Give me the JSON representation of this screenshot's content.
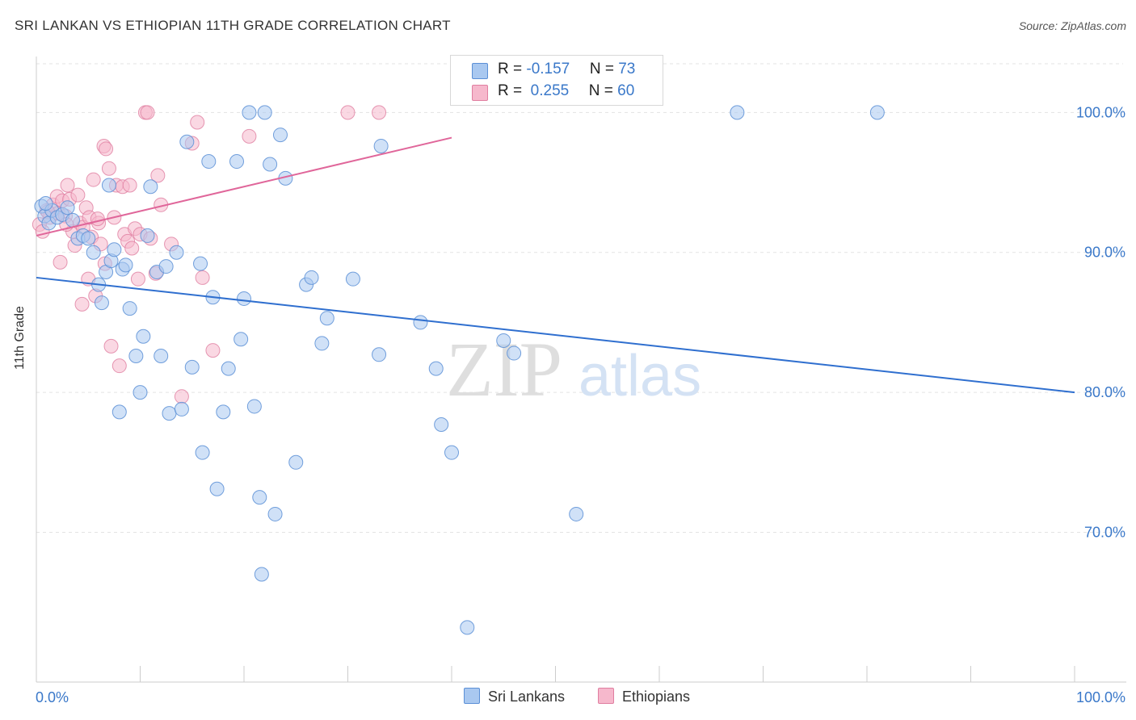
{
  "title": "SRI LANKAN VS ETHIOPIAN 11TH GRADE CORRELATION CHART",
  "source": "Source: ZipAtlas.com",
  "watermark": {
    "zip": "ZIP",
    "atlas": "atlas"
  },
  "colors": {
    "blue_fill": "#a9c8f0",
    "blue_stroke": "#5b8fd6",
    "blue_line": "#2f6fcf",
    "pink_fill": "#f6b8cc",
    "pink_stroke": "#e07ea0",
    "pink_line": "#e0669a",
    "axis_text": "#3a78c9",
    "grid": "#e3e3e3"
  },
  "legend": {
    "rows": [
      {
        "r_label": "R = ",
        "r_value": "-0.157",
        "n_label": "N = ",
        "n_value": "73"
      },
      {
        "r_label": "R = ",
        "r_value": " 0.255",
        "n_label": "N = ",
        "n_value": "60"
      }
    ]
  },
  "bottom_legend": {
    "sri_lankans": "Sri Lankans",
    "ethiopians": "Ethiopians"
  },
  "chart_data": {
    "type": "scatter",
    "title": "SRI LANKAN VS ETHIOPIAN 11TH GRADE CORRELATION CHART",
    "xlabel": "",
    "ylabel": "11th Grade",
    "xlim": [
      0,
      100
    ],
    "ylim": [
      59.3,
      104
    ],
    "x_tick_labels": [
      {
        "value": 0,
        "label": "0.0%"
      },
      {
        "value": 100,
        "label": "100.0%"
      }
    ],
    "y_tick_labels": [
      {
        "value": 100,
        "label": "100.0%"
      },
      {
        "value": 90,
        "label": "90.0%"
      },
      {
        "value": 80,
        "label": "80.0%"
      },
      {
        "value": 70,
        "label": "70.0%"
      }
    ],
    "grid": true,
    "legend_position": "top-center",
    "series": [
      {
        "name": "Sri Lankans",
        "r": -0.157,
        "n": 73,
        "trend": {
          "x": [
            0,
            100
          ],
          "y": [
            88.2,
            80.0
          ]
        },
        "points": [
          [
            0.5,
            93.3
          ],
          [
            0.8,
            92.6
          ],
          [
            1.2,
            92.1
          ],
          [
            1.5,
            93.0
          ],
          [
            2.0,
            92.5
          ],
          [
            2.5,
            92.7
          ],
          [
            3.0,
            93.2
          ],
          [
            3.5,
            92.3
          ],
          [
            4.0,
            91.0
          ],
          [
            4.5,
            91.2
          ],
          [
            5.0,
            91.0
          ],
          [
            5.5,
            90.0
          ],
          [
            6.0,
            87.7
          ],
          [
            6.3,
            86.4
          ],
          [
            6.7,
            88.6
          ],
          [
            7.0,
            94.8
          ],
          [
            7.2,
            89.4
          ],
          [
            7.5,
            90.2
          ],
          [
            8.0,
            78.6
          ],
          [
            8.3,
            88.8
          ],
          [
            8.6,
            89.1
          ],
          [
            9.0,
            86.0
          ],
          [
            9.6,
            82.6
          ],
          [
            10.0,
            80.0
          ],
          [
            10.3,
            84.0
          ],
          [
            10.7,
            91.2
          ],
          [
            11.0,
            94.7
          ],
          [
            11.6,
            88.6
          ],
          [
            12.0,
            82.6
          ],
          [
            12.5,
            89.0
          ],
          [
            12.8,
            78.5
          ],
          [
            13.5,
            90.0
          ],
          [
            14.0,
            78.8
          ],
          [
            14.5,
            97.9
          ],
          [
            15.0,
            81.8
          ],
          [
            15.8,
            89.2
          ],
          [
            16.0,
            75.7
          ],
          [
            16.6,
            96.5
          ],
          [
            17.0,
            86.8
          ],
          [
            17.4,
            73.1
          ],
          [
            18.0,
            78.6
          ],
          [
            18.5,
            81.7
          ],
          [
            19.3,
            96.5
          ],
          [
            19.7,
            83.8
          ],
          [
            20.0,
            86.7
          ],
          [
            20.5,
            100.0
          ],
          [
            21.0,
            79.0
          ],
          [
            21.5,
            72.5
          ],
          [
            21.7,
            67.0
          ],
          [
            22.0,
            100.0
          ],
          [
            22.5,
            96.3
          ],
          [
            23.0,
            71.3
          ],
          [
            23.5,
            98.4
          ],
          [
            24.0,
            95.3
          ],
          [
            25.0,
            75.0
          ],
          [
            26.0,
            87.7
          ],
          [
            26.5,
            88.2
          ],
          [
            27.5,
            83.5
          ],
          [
            28.0,
            85.3
          ],
          [
            30.5,
            88.1
          ],
          [
            33.0,
            82.7
          ],
          [
            33.2,
            97.6
          ],
          [
            37.0,
            85.0
          ],
          [
            38.5,
            81.7
          ],
          [
            39.0,
            77.7
          ],
          [
            40.0,
            75.7
          ],
          [
            41.5,
            63.2
          ],
          [
            45.0,
            83.7
          ],
          [
            46.0,
            82.8
          ],
          [
            52.0,
            71.3
          ],
          [
            67.5,
            100.0
          ],
          [
            81.0,
            100.0
          ],
          [
            0.9,
            93.5
          ]
        ]
      },
      {
        "name": "Ethiopians",
        "r": 0.255,
        "n": 60,
        "trend": {
          "x": [
            0,
            40
          ],
          "y": [
            91.2,
            98.2
          ]
        },
        "points": [
          [
            0.3,
            92.0
          ],
          [
            0.6,
            91.5
          ],
          [
            1.0,
            93.0
          ],
          [
            1.3,
            92.5
          ],
          [
            1.6,
            93.4
          ],
          [
            2.0,
            94.0
          ],
          [
            2.1,
            92.8
          ],
          [
            2.3,
            89.3
          ],
          [
            2.5,
            93.7
          ],
          [
            2.8,
            92.6
          ],
          [
            3.0,
            94.8
          ],
          [
            3.2,
            93.8
          ],
          [
            3.5,
            91.5
          ],
          [
            3.7,
            90.5
          ],
          [
            4.0,
            94.1
          ],
          [
            4.2,
            92.1
          ],
          [
            4.5,
            91.8
          ],
          [
            4.8,
            93.2
          ],
          [
            5.0,
            88.1
          ],
          [
            5.1,
            92.5
          ],
          [
            5.3,
            91.1
          ],
          [
            5.5,
            95.2
          ],
          [
            5.7,
            86.9
          ],
          [
            6.0,
            92.1
          ],
          [
            6.2,
            90.6
          ],
          [
            6.5,
            97.6
          ],
          [
            6.7,
            97.4
          ],
          [
            7.0,
            96.0
          ],
          [
            7.2,
            83.3
          ],
          [
            7.5,
            92.5
          ],
          [
            7.7,
            94.8
          ],
          [
            8.0,
            81.9
          ],
          [
            8.3,
            94.7
          ],
          [
            8.5,
            91.3
          ],
          [
            8.8,
            90.8
          ],
          [
            9.0,
            94.8
          ],
          [
            9.2,
            90.3
          ],
          [
            9.5,
            91.7
          ],
          [
            9.8,
            88.1
          ],
          [
            10.0,
            91.3
          ],
          [
            10.5,
            100.0
          ],
          [
            10.7,
            100.0
          ],
          [
            11.0,
            91.0
          ],
          [
            11.5,
            88.5
          ],
          [
            11.7,
            95.5
          ],
          [
            12.0,
            93.4
          ],
          [
            13.0,
            90.6
          ],
          [
            14.0,
            79.7
          ],
          [
            15.0,
            97.8
          ],
          [
            15.5,
            99.3
          ],
          [
            16.0,
            88.2
          ],
          [
            17.0,
            83.0
          ],
          [
            20.5,
            98.3
          ],
          [
            30.0,
            100.0
          ],
          [
            33.0,
            100.0
          ],
          [
            4.4,
            86.3
          ],
          [
            6.6,
            89.2
          ],
          [
            5.9,
            92.4
          ],
          [
            2.9,
            92.0
          ],
          [
            1.1,
            92.9
          ]
        ]
      }
    ]
  }
}
